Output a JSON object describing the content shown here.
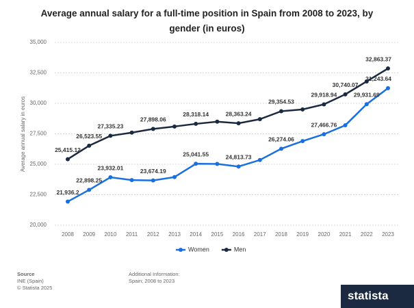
{
  "chart_data": {
    "type": "line",
    "title": "Average annual salary for a full-time position in Spain from 2008 to 2023, by gender (in euros)",
    "y_label": "Average annual salary in euros",
    "categories": [
      "2008",
      "2009",
      "2010",
      "2011",
      "2012",
      "2013",
      "2014",
      "2015",
      "2016",
      "2017",
      "2018",
      "2019",
      "2020",
      "2021",
      "2022",
      "2023"
    ],
    "series": [
      {
        "name": "Women",
        "color": "#1a6fe0",
        "values": [
          21936.2,
          22898.25,
          23932.01,
          23700,
          23674.19,
          23950,
          25041.55,
          25030,
          24813.73,
          25350,
          26274.06,
          26900,
          27466.76,
          28200,
          29931.69,
          31243.64
        ],
        "value_labels": [
          "21,936.2",
          "22,898.25",
          "23,932.01",
          null,
          "23,674.19",
          null,
          "25,041.55",
          null,
          "24,813.73",
          null,
          "26,274.06",
          null,
          "27,466.76",
          null,
          "29,931.69",
          "31,243.64"
        ]
      },
      {
        "name": "Men",
        "color": "#1b2a40",
        "values": [
          25415.12,
          26523.55,
          27335.23,
          27600,
          27898.06,
          28100,
          28318.14,
          28500,
          28363.24,
          28700,
          29354.53,
          29500,
          29918.94,
          30740.07,
          31800,
          32863.37
        ],
        "value_labels": [
          "25,415.12",
          "26,523.55",
          "27,335.23",
          null,
          "27,898.06",
          null,
          "28,318.14",
          null,
          "28,363.24",
          null,
          "29,354.53",
          null,
          "29,918.94",
          "30,740.07",
          null,
          "32,863.37"
        ]
      }
    ],
    "ylim": [
      20000,
      35000
    ],
    "yticks": [
      {
        "value": 20000,
        "label": "20,000"
      },
      {
        "value": 22500,
        "label": "22,500"
      },
      {
        "value": 25000,
        "label": "25,000"
      },
      {
        "value": 27500,
        "label": "27,500"
      },
      {
        "value": 30000,
        "label": "30,000"
      },
      {
        "value": 32500,
        "label": "32,500"
      },
      {
        "value": 35000,
        "label": "35,000"
      }
    ],
    "grid": true,
    "legend": "bottom"
  },
  "footer": {
    "source_heading": "Source",
    "source": "INE (Spain)",
    "copyright": "© Statista 2025",
    "info_heading": "Additional Information:",
    "info": "Spain; 2008 to 2023",
    "logo": "statista"
  }
}
